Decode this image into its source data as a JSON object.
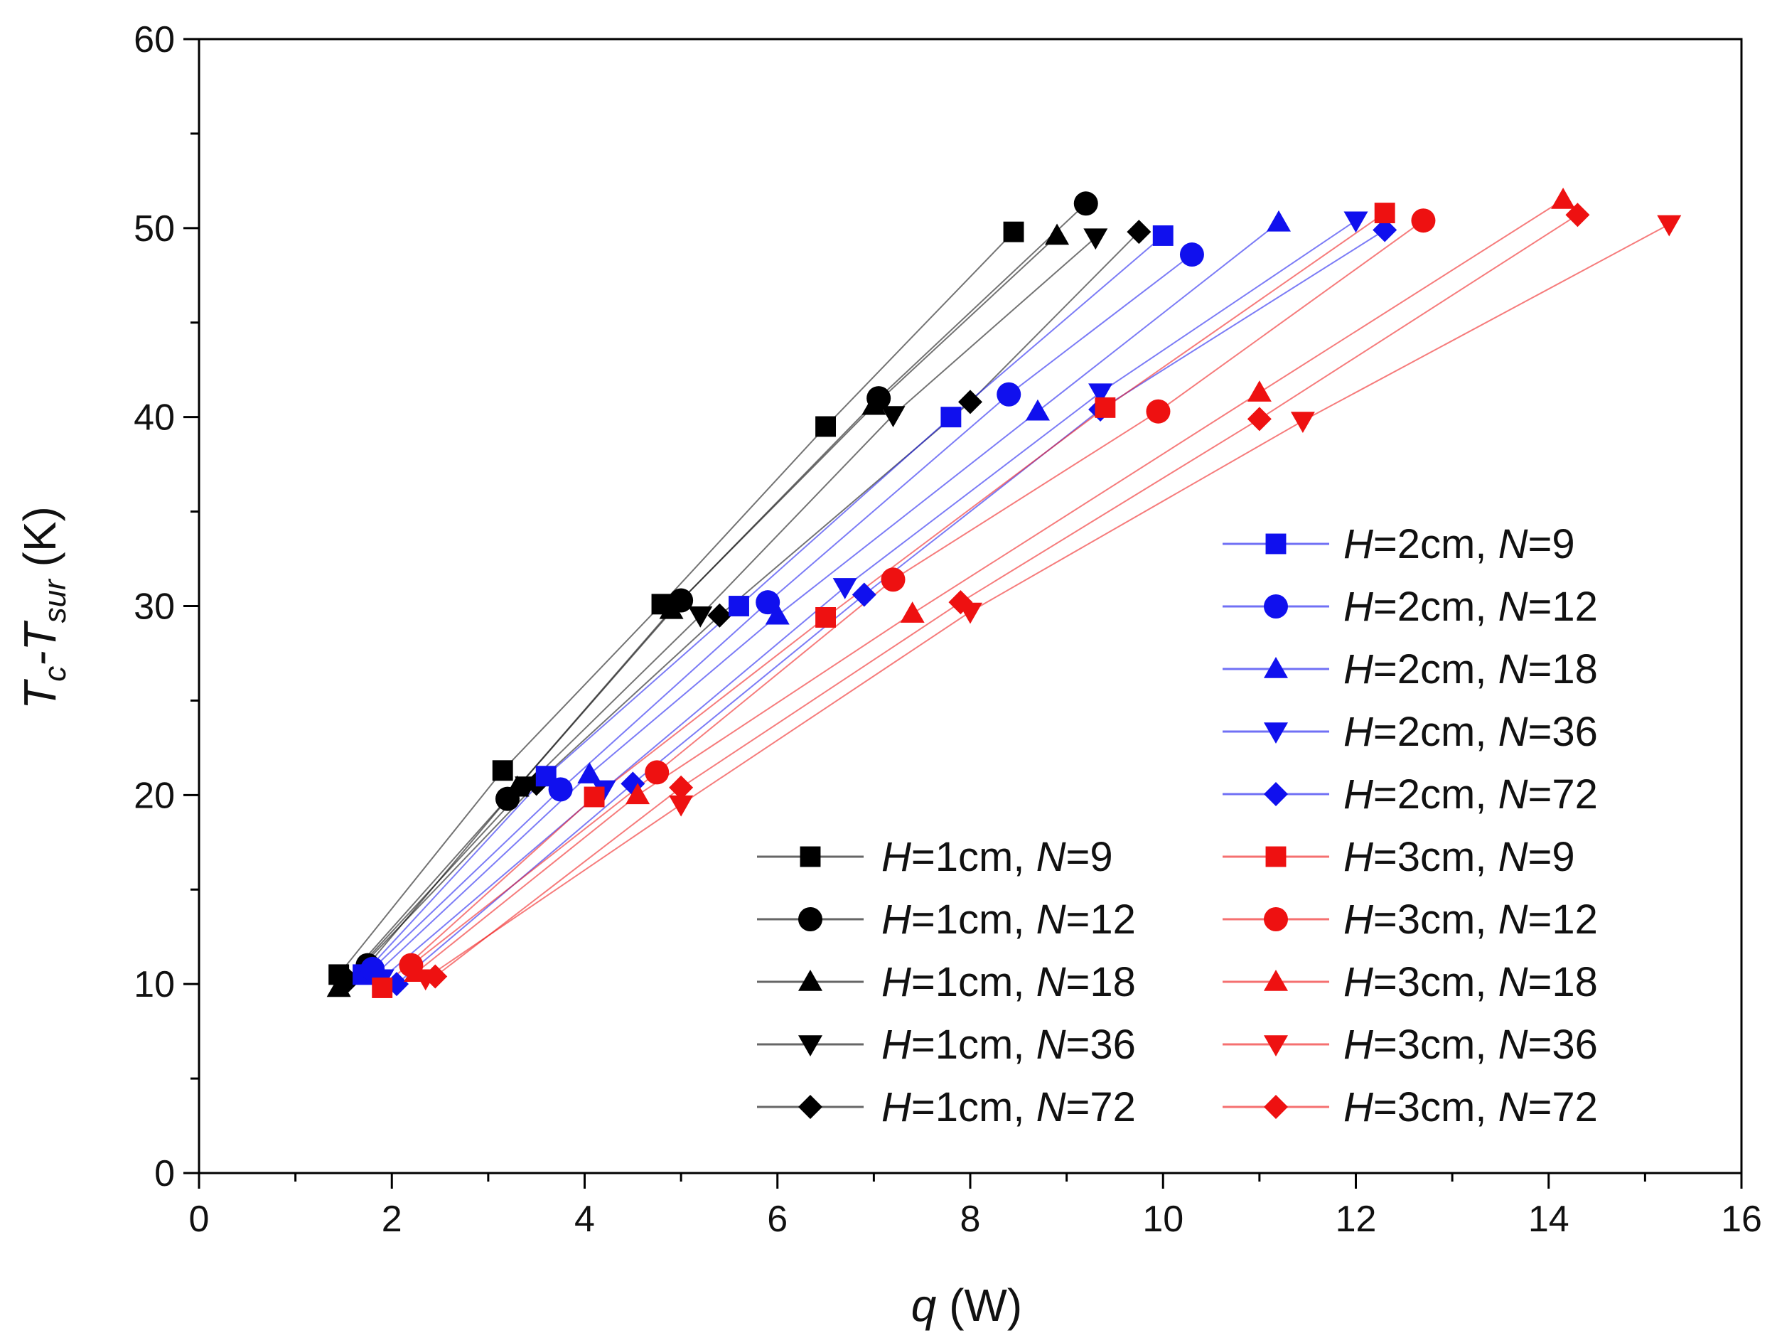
{
  "chart_data": {
    "type": "scatter",
    "title": "",
    "xlabel_var": "q",
    "xlabel_unit": " (W)",
    "ylabel_main": "T",
    "ylabel_sub1": "c",
    "ylabel_mid": "-T",
    "ylabel_sub2": "sur",
    "ylabel_unit": " (K)",
    "xlim": [
      0,
      16
    ],
    "ylim": [
      0,
      60
    ],
    "xticks": [
      "0",
      "2",
      "4",
      "6",
      "8",
      "10",
      "12",
      "14",
      "16"
    ],
    "yticks": [
      "0",
      "10",
      "20",
      "30",
      "40",
      "50",
      "60"
    ],
    "grid": false,
    "legend_position": "bottom-right",
    "colors": {
      "H1": "#000000",
      "H2": "#1010ee",
      "H3": "#ee1111"
    },
    "series": [
      {
        "name": "H=1cm, N=9",
        "H": "1cm",
        "N": "9",
        "group": "H1",
        "marker": "square",
        "x": [
          1.45,
          3.15,
          4.8,
          6.5,
          8.45
        ],
        "y": [
          10.5,
          21.3,
          30.1,
          39.5,
          49.8
        ]
      },
      {
        "name": "H=1cm, N=12",
        "H": "1cm",
        "N": "12",
        "group": "H1",
        "marker": "circle",
        "x": [
          1.75,
          3.2,
          5.0,
          7.05,
          9.2
        ],
        "y": [
          11.0,
          19.8,
          30.3,
          41.0,
          51.3
        ]
      },
      {
        "name": "H=1cm, N=18",
        "H": "1cm",
        "N": "18",
        "group": "H1",
        "marker": "triangle-up",
        "x": [
          1.45,
          3.3,
          4.9,
          7.0,
          8.9
        ],
        "y": [
          9.8,
          20.4,
          29.8,
          40.6,
          49.6
        ]
      },
      {
        "name": "H=1cm, N=36",
        "H": "1cm",
        "N": "36",
        "group": "H1",
        "marker": "triangle-down",
        "x": [
          1.5,
          3.4,
          5.2,
          7.2,
          9.3
        ],
        "y": [
          10.0,
          20.5,
          29.5,
          40.1,
          49.5
        ]
      },
      {
        "name": "H=1cm, N=72",
        "H": "1cm",
        "N": "72",
        "group": "H1",
        "marker": "diamond",
        "x": [
          1.55,
          3.5,
          5.4,
          8.0,
          9.75
        ],
        "y": [
          10.2,
          20.6,
          29.5,
          40.8,
          49.8
        ]
      },
      {
        "name": "H=2cm, N=9",
        "H": "2cm",
        "N": "9",
        "group": "H2",
        "marker": "square",
        "x": [
          1.7,
          3.6,
          5.6,
          7.8,
          10.0
        ],
        "y": [
          10.5,
          21.0,
          30.0,
          40.0,
          49.6
        ]
      },
      {
        "name": "H=2cm, N=12",
        "H": "2cm",
        "N": "12",
        "group": "H2",
        "marker": "circle",
        "x": [
          1.8,
          3.75,
          5.9,
          8.4,
          10.3
        ],
        "y": [
          10.8,
          20.3,
          30.2,
          41.2,
          48.6
        ]
      },
      {
        "name": "H=2cm, N=18",
        "H": "2cm",
        "N": "18",
        "group": "H2",
        "marker": "triangle-up",
        "x": [
          1.85,
          4.05,
          6.0,
          8.7,
          11.2
        ],
        "y": [
          10.6,
          21.1,
          29.5,
          40.3,
          50.3
        ]
      },
      {
        "name": "H=2cm, N=36",
        "H": "2cm",
        "N": "36",
        "group": "H2",
        "marker": "triangle-down",
        "x": [
          1.9,
          4.2,
          6.7,
          9.35,
          12.0
        ],
        "y": [
          10.3,
          20.3,
          31.0,
          41.3,
          50.4
        ]
      },
      {
        "name": "H=2cm, N=72",
        "H": "2cm",
        "N": "72",
        "group": "H2",
        "marker": "diamond",
        "x": [
          2.05,
          4.5,
          6.9,
          9.35,
          12.3
        ],
        "y": [
          10.0,
          20.6,
          30.6,
          40.4,
          49.9
        ]
      },
      {
        "name": "H=3cm, N=9",
        "H": "3cm",
        "N": "9",
        "group": "H3",
        "marker": "square",
        "x": [
          1.9,
          4.1,
          6.5,
          9.4,
          12.3
        ],
        "y": [
          9.8,
          19.9,
          29.4,
          40.5,
          50.8
        ]
      },
      {
        "name": "H=3cm, N=12",
        "H": "3cm",
        "N": "12",
        "group": "H3",
        "marker": "circle",
        "x": [
          2.2,
          4.75,
          7.2,
          9.95,
          12.7
        ],
        "y": [
          11.0,
          21.2,
          31.4,
          40.3,
          50.4
        ]
      },
      {
        "name": "H=3cm, N=18",
        "H": "3cm",
        "N": "18",
        "group": "H3",
        "marker": "triangle-up",
        "x": [
          2.25,
          4.55,
          7.4,
          11.0,
          14.15
        ],
        "y": [
          10.6,
          20.0,
          29.6,
          41.3,
          51.5
        ]
      },
      {
        "name": "H=3cm, N=36",
        "H": "3cm",
        "N": "36",
        "group": "H3",
        "marker": "triangle-down",
        "x": [
          2.35,
          5.0,
          8.0,
          11.45,
          15.25
        ],
        "y": [
          10.3,
          19.5,
          29.7,
          39.8,
          50.2
        ]
      },
      {
        "name": "H=3cm, N=72",
        "H": "3cm",
        "N": "72",
        "group": "H3",
        "marker": "diamond",
        "x": [
          2.45,
          5.0,
          7.9,
          11.0,
          14.3
        ],
        "y": [
          10.4,
          20.4,
          30.2,
          39.9,
          50.7
        ]
      }
    ],
    "legend_left": [
      0,
      1,
      2,
      3,
      4
    ],
    "legend_right": [
      5,
      6,
      7,
      8,
      9,
      10,
      11,
      12,
      13,
      14
    ]
  }
}
